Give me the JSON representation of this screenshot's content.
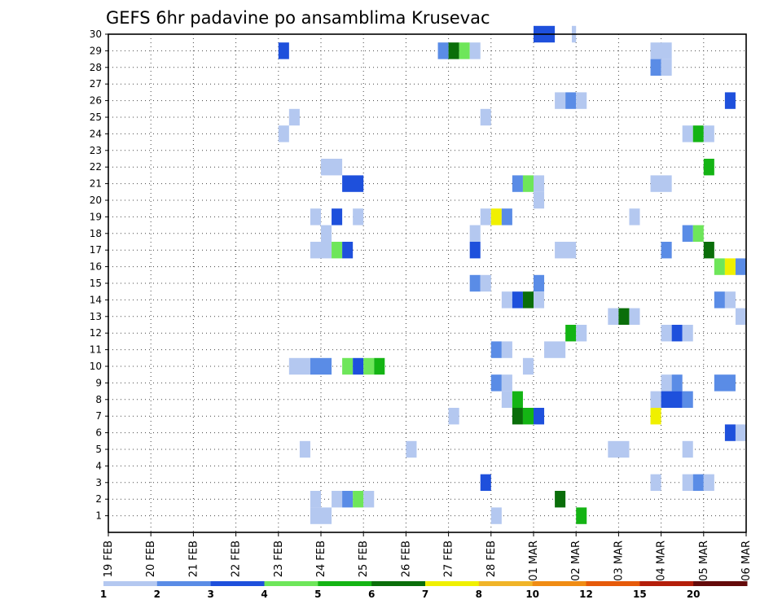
{
  "chart_data": {
    "type": "heatmap",
    "title": "GEFS 6hr padavine po ansamblima Krusevac",
    "xlabel": "",
    "ylabel": "",
    "x_tick_labels": [
      "19 FEB",
      "20 FEB",
      "21 FEB",
      "22 FEB",
      "23 FEB",
      "24 FEB",
      "25 FEB",
      "26 FEB",
      "27 FEB",
      "28 FEB",
      "01 MAR",
      "02 MAR",
      "03 MAR",
      "04 MAR",
      "05 MAR",
      "06 MAR"
    ],
    "xlim_days": [
      0,
      15
    ],
    "ylim_members": [
      0,
      30
    ],
    "y_ticks": [
      1,
      2,
      3,
      4,
      5,
      6,
      7,
      8,
      9,
      10,
      11,
      12,
      13,
      14,
      15,
      16,
      17,
      18,
      19,
      20,
      21,
      22,
      23,
      24,
      25,
      26,
      27,
      28,
      29,
      30
    ],
    "step_hours": 6,
    "grid": "dotted",
    "color_scale": {
      "labels": [
        "1",
        "2",
        "3",
        "4",
        "5",
        "6",
        "7",
        "8",
        "10",
        "12",
        "15",
        "20"
      ],
      "colors": [
        "#b4c8f0",
        "#5a8ce6",
        "#1e50dc",
        "#6ee65a",
        "#14b414",
        "#0a6e0a",
        "#f0f000",
        "#f0b428",
        "#f08c14",
        "#e65a0a",
        "#b41e0a",
        "#640a0a"
      ]
    },
    "cells": [
      {
        "member": 30,
        "x": [
          10.0,
          10.5
        ],
        "c": 3
      },
      {
        "member": 30,
        "x": [
          10.9,
          11.0
        ],
        "c": 1
      },
      {
        "member": 29,
        "x": [
          4.0,
          4.25
        ],
        "c": 3
      },
      {
        "member": 29,
        "x": [
          7.75,
          8.0
        ],
        "c": 2
      },
      {
        "member": 29,
        "x": [
          8.0,
          8.25
        ],
        "c": 6
      },
      {
        "member": 29,
        "x": [
          8.25,
          8.5
        ],
        "c": 4
      },
      {
        "member": 29,
        "x": [
          8.5,
          8.75
        ],
        "c": 1
      },
      {
        "member": 29,
        "x": [
          12.75,
          13.25
        ],
        "c": 1
      },
      {
        "member": 28,
        "x": [
          12.75,
          13.0
        ],
        "c": 2
      },
      {
        "member": 28,
        "x": [
          13.0,
          13.25
        ],
        "c": 1
      },
      {
        "member": 26,
        "x": [
          10.5,
          10.75
        ],
        "c": 1
      },
      {
        "member": 26,
        "x": [
          10.75,
          11.0
        ],
        "c": 2
      },
      {
        "member": 26,
        "x": [
          11.0,
          11.25
        ],
        "c": 1
      },
      {
        "member": 26,
        "x": [
          14.5,
          14.75
        ],
        "c": 3
      },
      {
        "member": 25,
        "x": [
          4.25,
          4.5
        ],
        "c": 1
      },
      {
        "member": 25,
        "x": [
          8.75,
          9.0
        ],
        "c": 1
      },
      {
        "member": 24,
        "x": [
          4.0,
          4.25
        ],
        "c": 1
      },
      {
        "member": 24,
        "x": [
          13.5,
          13.75
        ],
        "c": 1
      },
      {
        "member": 24,
        "x": [
          13.75,
          14.0
        ],
        "c": 5
      },
      {
        "member": 24,
        "x": [
          14.0,
          14.25
        ],
        "c": 1
      },
      {
        "member": 22,
        "x": [
          5.0,
          5.5
        ],
        "c": 1
      },
      {
        "member": 22,
        "x": [
          14.0,
          14.25
        ],
        "c": 5
      },
      {
        "member": 21,
        "x": [
          5.5,
          6.0
        ],
        "c": 3
      },
      {
        "member": 21,
        "x": [
          9.5,
          9.75
        ],
        "c": 2
      },
      {
        "member": 21,
        "x": [
          9.75,
          10.0
        ],
        "c": 4
      },
      {
        "member": 21,
        "x": [
          10.0,
          10.25
        ],
        "c": 1
      },
      {
        "member": 21,
        "x": [
          12.75,
          13.25
        ],
        "c": 1
      },
      {
        "member": 20,
        "x": [
          10.0,
          10.25
        ],
        "c": 1
      },
      {
        "member": 19,
        "x": [
          4.75,
          5.0
        ],
        "c": 1
      },
      {
        "member": 19,
        "x": [
          5.25,
          5.5
        ],
        "c": 3
      },
      {
        "member": 19,
        "x": [
          5.75,
          6.0
        ],
        "c": 1
      },
      {
        "member": 19,
        "x": [
          8.75,
          9.0
        ],
        "c": 1
      },
      {
        "member": 19,
        "x": [
          9.0,
          9.25
        ],
        "c": 7
      },
      {
        "member": 19,
        "x": [
          9.25,
          9.5
        ],
        "c": 2
      },
      {
        "member": 19,
        "x": [
          12.25,
          12.5
        ],
        "c": 1
      },
      {
        "member": 18,
        "x": [
          5.0,
          5.25
        ],
        "c": 1
      },
      {
        "member": 18,
        "x": [
          8.5,
          8.75
        ],
        "c": 1
      },
      {
        "member": 18,
        "x": [
          13.5,
          13.75
        ],
        "c": 2
      },
      {
        "member": 18,
        "x": [
          13.75,
          14.0
        ],
        "c": 4
      },
      {
        "member": 17,
        "x": [
          4.75,
          5.25
        ],
        "c": 1
      },
      {
        "member": 17,
        "x": [
          5.25,
          5.5
        ],
        "c": 4
      },
      {
        "member": 17,
        "x": [
          5.5,
          5.75
        ],
        "c": 3
      },
      {
        "member": 17,
        "x": [
          8.5,
          8.75
        ],
        "c": 3
      },
      {
        "member": 17,
        "x": [
          10.5,
          11.0
        ],
        "c": 1
      },
      {
        "member": 17,
        "x": [
          13.0,
          13.25
        ],
        "c": 2
      },
      {
        "member": 17,
        "x": [
          14.0,
          14.25
        ],
        "c": 6
      },
      {
        "member": 16,
        "x": [
          14.25,
          14.5
        ],
        "c": 4
      },
      {
        "member": 16,
        "x": [
          14.5,
          14.75
        ],
        "c": 7
      },
      {
        "member": 16,
        "x": [
          14.75,
          15.0
        ],
        "c": 2
      },
      {
        "member": 15,
        "x": [
          8.5,
          8.75
        ],
        "c": 2
      },
      {
        "member": 15,
        "x": [
          8.75,
          9.0
        ],
        "c": 1
      },
      {
        "member": 15,
        "x": [
          10.0,
          10.25
        ],
        "c": 2
      },
      {
        "member": 14,
        "x": [
          9.25,
          9.5
        ],
        "c": 1
      },
      {
        "member": 14,
        "x": [
          9.5,
          9.75
        ],
        "c": 3
      },
      {
        "member": 14,
        "x": [
          9.75,
          10.0
        ],
        "c": 6
      },
      {
        "member": 14,
        "x": [
          10.0,
          10.25
        ],
        "c": 1
      },
      {
        "member": 14,
        "x": [
          14.25,
          14.5
        ],
        "c": 2
      },
      {
        "member": 14,
        "x": [
          14.5,
          14.75
        ],
        "c": 1
      },
      {
        "member": 13,
        "x": [
          11.75,
          12.0
        ],
        "c": 1
      },
      {
        "member": 13,
        "x": [
          12.0,
          12.25
        ],
        "c": 6
      },
      {
        "member": 13,
        "x": [
          12.25,
          12.5
        ],
        "c": 1
      },
      {
        "member": 13,
        "x": [
          14.75,
          15.0
        ],
        "c": 1
      },
      {
        "member": 12,
        "x": [
          10.75,
          11.0
        ],
        "c": 5
      },
      {
        "member": 12,
        "x": [
          11.0,
          11.25
        ],
        "c": 1
      },
      {
        "member": 12,
        "x": [
          13.0,
          13.25
        ],
        "c": 1
      },
      {
        "member": 12,
        "x": [
          13.25,
          13.5
        ],
        "c": 3
      },
      {
        "member": 12,
        "x": [
          13.5,
          13.75
        ],
        "c": 1
      },
      {
        "member": 11,
        "x": [
          9.0,
          9.25
        ],
        "c": 2
      },
      {
        "member": 11,
        "x": [
          9.25,
          9.5
        ],
        "c": 1
      },
      {
        "member": 11,
        "x": [
          10.25,
          10.75
        ],
        "c": 1
      },
      {
        "member": 10,
        "x": [
          4.25,
          4.75
        ],
        "c": 1
      },
      {
        "member": 10,
        "x": [
          4.75,
          5.25
        ],
        "c": 2
      },
      {
        "member": 10,
        "x": [
          5.5,
          5.75
        ],
        "c": 4
      },
      {
        "member": 10,
        "x": [
          5.75,
          6.0
        ],
        "c": 3
      },
      {
        "member": 10,
        "x": [
          6.0,
          6.25
        ],
        "c": 4
      },
      {
        "member": 10,
        "x": [
          6.25,
          6.5
        ],
        "c": 5
      },
      {
        "member": 10,
        "x": [
          9.75,
          10.0
        ],
        "c": 1
      },
      {
        "member": 9,
        "x": [
          9.0,
          9.25
        ],
        "c": 2
      },
      {
        "member": 9,
        "x": [
          9.25,
          9.5
        ],
        "c": 1
      },
      {
        "member": 9,
        "x": [
          13.0,
          13.25
        ],
        "c": 1
      },
      {
        "member": 9,
        "x": [
          13.25,
          13.5
        ],
        "c": 2
      },
      {
        "member": 9,
        "x": [
          14.25,
          14.75
        ],
        "c": 2
      },
      {
        "member": 8,
        "x": [
          9.25,
          9.5
        ],
        "c": 1
      },
      {
        "member": 8,
        "x": [
          9.5,
          9.75
        ],
        "c": 5
      },
      {
        "member": 8,
        "x": [
          12.75,
          13.0
        ],
        "c": 1
      },
      {
        "member": 8,
        "x": [
          13.0,
          13.5
        ],
        "c": 3
      },
      {
        "member": 8,
        "x": [
          13.5,
          13.75
        ],
        "c": 2
      },
      {
        "member": 7,
        "x": [
          8.0,
          8.25
        ],
        "c": 1
      },
      {
        "member": 7,
        "x": [
          9.5,
          9.75
        ],
        "c": 6
      },
      {
        "member": 7,
        "x": [
          9.75,
          10.0
        ],
        "c": 5
      },
      {
        "member": 7,
        "x": [
          10.0,
          10.25
        ],
        "c": 3
      },
      {
        "member": 7,
        "x": [
          12.75,
          13.0
        ],
        "c": 7
      },
      {
        "member": 6,
        "x": [
          14.5,
          14.75
        ],
        "c": 3
      },
      {
        "member": 6,
        "x": [
          14.75,
          15.0
        ],
        "c": 1
      },
      {
        "member": 5,
        "x": [
          4.5,
          4.75
        ],
        "c": 1
      },
      {
        "member": 5,
        "x": [
          7.0,
          7.25
        ],
        "c": 1
      },
      {
        "member": 5,
        "x": [
          11.75,
          12.25
        ],
        "c": 1
      },
      {
        "member": 5,
        "x": [
          13.5,
          13.75
        ],
        "c": 1
      },
      {
        "member": 3,
        "x": [
          8.75,
          9.0
        ],
        "c": 3
      },
      {
        "member": 3,
        "x": [
          12.75,
          13.0
        ],
        "c": 1
      },
      {
        "member": 3,
        "x": [
          13.5,
          13.75
        ],
        "c": 1
      },
      {
        "member": 3,
        "x": [
          13.75,
          14.0
        ],
        "c": 2
      },
      {
        "member": 3,
        "x": [
          14.0,
          14.25
        ],
        "c": 1
      },
      {
        "member": 2,
        "x": [
          4.75,
          5.0
        ],
        "c": 1
      },
      {
        "member": 2,
        "x": [
          5.25,
          5.5
        ],
        "c": 1
      },
      {
        "member": 2,
        "x": [
          5.5,
          5.75
        ],
        "c": 2
      },
      {
        "member": 2,
        "x": [
          5.75,
          6.0
        ],
        "c": 4
      },
      {
        "member": 2,
        "x": [
          6.0,
          6.25
        ],
        "c": 1
      },
      {
        "member": 2,
        "x": [
          10.5,
          10.75
        ],
        "c": 6
      },
      {
        "member": 1,
        "x": [
          4.75,
          5.25
        ],
        "c": 1
      },
      {
        "member": 1,
        "x": [
          9.0,
          9.25
        ],
        "c": 1
      },
      {
        "member": 1,
        "x": [
          11.0,
          11.25
        ],
        "c": 5
      }
    ]
  }
}
